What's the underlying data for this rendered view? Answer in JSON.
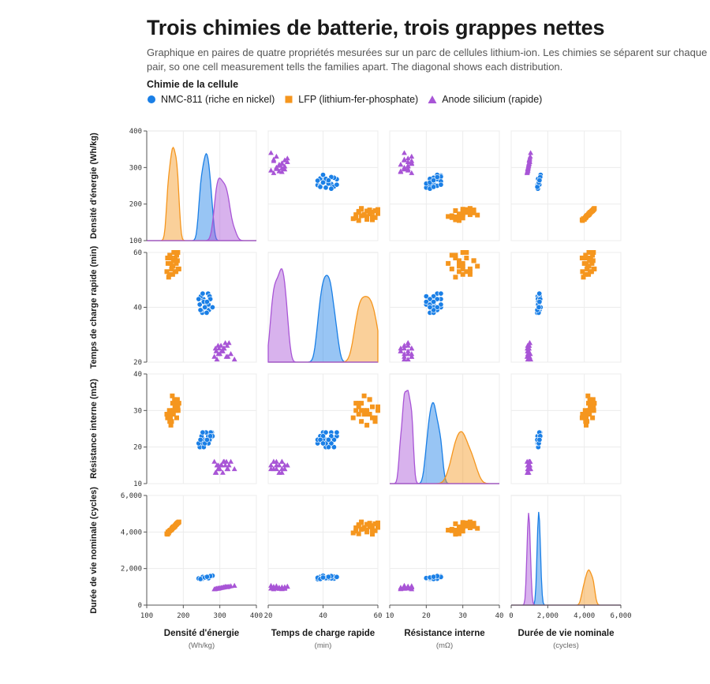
{
  "title": "Trois chimies de batterie, trois grappes nettes",
  "subtitle_line1": "Graphique en paires de quatre propriétés mesurées sur un parc de cellules lithium-ion. Les chimies se séparent sur chaque",
  "subtitle_line2": "pair, so one cell measurement tells the families apart. The diagonal shows each distribution.",
  "legend": {
    "title": "Chimie de la cellule",
    "items": [
      {
        "label": "NMC-811 (riche en nickel)",
        "color": "#1a7fe6",
        "marker": "circle"
      },
      {
        "label": "LFP (lithium-fer-phosphate)",
        "color": "#f5961e",
        "marker": "square"
      },
      {
        "label": "Anode silicium (rapide)",
        "color": "#a855d6",
        "marker": "triangle"
      }
    ]
  },
  "chart_data": {
    "type": "scatter",
    "subtype": "pair-plot (scatter matrix) with density diagonal",
    "grid": true,
    "variables": [
      {
        "name": "Densité d'énergie",
        "row_label": "Densité d'énergie (Wh/kg)",
        "unit": "(Wh/kg)",
        "range": [
          100,
          400
        ],
        "ticks": [
          100,
          200,
          300,
          400
        ],
        "tick_labels": [
          "100",
          "200",
          "300",
          "400"
        ]
      },
      {
        "name": "Temps de charge rapide",
        "row_label": "Temps de charge rapide (min)",
        "unit": "(min)",
        "range": [
          20,
          60
        ],
        "ticks": [
          20,
          40,
          60
        ],
        "tick_labels": [
          "20",
          "40",
          "60"
        ]
      },
      {
        "name": "Résistance interne",
        "row_label": "Résistance interne (mΩ)",
        "unit": "(mΩ)",
        "range": [
          10,
          40
        ],
        "ticks": [
          10,
          20,
          30,
          40
        ],
        "tick_labels": [
          "10",
          "20",
          "30",
          "40"
        ]
      },
      {
        "name": "Durée de vie nominale",
        "row_label": "Durée de vie nominale (cycles)",
        "unit": "(cycles)",
        "range": [
          0,
          6000
        ],
        "ticks": [
          0,
          2000,
          4000,
          6000
        ],
        "tick_labels": [
          "0",
          "2,000",
          "4,000",
          "6,000"
        ]
      }
    ],
    "series": [
      {
        "name": "NMC-811 (riche en nickel)",
        "color": "#1a7fe6",
        "marker": "circle",
        "points": [
          [
            263,
            41,
            22,
            1520
          ],
          [
            255,
            43,
            21,
            1480
          ],
          [
            270,
            39,
            23,
            1550
          ],
          [
            248,
            44,
            20,
            1450
          ],
          [
            278,
            40,
            24,
            1600
          ],
          [
            260,
            42,
            22,
            1500
          ],
          [
            252,
            38,
            21,
            1420
          ],
          [
            268,
            45,
            23,
            1530
          ],
          [
            245,
            41,
            20,
            1470
          ],
          [
            275,
            43,
            24,
            1580
          ],
          [
            258,
            40,
            22,
            1510
          ],
          [
            266,
            42,
            21,
            1490
          ],
          [
            250,
            39,
            23,
            1440
          ],
          [
            272,
            44,
            22,
            1560
          ],
          [
            262,
            41,
            24,
            1520
          ],
          [
            242,
            43,
            21,
            1460
          ],
          [
            280,
            40,
            23,
            1610
          ],
          [
            256,
            42,
            20,
            1480
          ],
          [
            264,
            38,
            22,
            1500
          ],
          [
            253,
            45,
            24,
            1540
          ],
          [
            269,
            41,
            21,
            1470
          ],
          [
            247,
            39,
            22,
            1430
          ],
          [
            274,
            43,
            23,
            1590
          ],
          [
            259,
            40,
            21,
            1510
          ],
          [
            265,
            42,
            22,
            1550
          ]
        ]
      },
      {
        "name": "LFP (lithium-fer-phosphate)",
        "color": "#f5961e",
        "marker": "square",
        "points": [
          [
            172,
            55,
            30,
            4250
          ],
          [
            165,
            58,
            28,
            4100
          ],
          [
            180,
            53,
            32,
            4400
          ],
          [
            158,
            56,
            29,
            4000
          ],
          [
            185,
            60,
            31,
            4500
          ],
          [
            168,
            54,
            27,
            4150
          ],
          [
            176,
            57,
            33,
            4300
          ],
          [
            162,
            52,
            30,
            4050
          ],
          [
            182,
            59,
            28,
            4450
          ],
          [
            170,
            55,
            34,
            4200
          ],
          [
            155,
            53,
            29,
            3900
          ],
          [
            178,
            58,
            31,
            4350
          ],
          [
            166,
            56,
            26,
            4100
          ],
          [
            188,
            54,
            32,
            4550
          ],
          [
            174,
            60,
            30,
            4250
          ],
          [
            160,
            51,
            28,
            3950
          ],
          [
            184,
            57,
            33,
            4480
          ],
          [
            169,
            55,
            29,
            4180
          ],
          [
            177,
            53,
            31,
            4320
          ],
          [
            163,
            59,
            27,
            4070
          ],
          [
            181,
            56,
            30,
            4420
          ],
          [
            171,
            52,
            32,
            4230
          ],
          [
            157,
            58,
            28,
            3880
          ],
          [
            186,
            54,
            30,
            4520
          ],
          [
            173,
            57,
            29,
            4280
          ]
        ]
      },
      {
        "name": "Anode silicium (rapide)",
        "color": "#a855d6",
        "marker": "triangle",
        "points": [
          [
            305,
            24,
            15,
            950
          ],
          [
            295,
            26,
            14,
            900
          ],
          [
            318,
            22,
            16,
            1000
          ],
          [
            288,
            25,
            13,
            880
          ],
          [
            325,
            27,
            15,
            1020
          ],
          [
            300,
            23,
            14,
            930
          ],
          [
            312,
            25,
            16,
            970
          ],
          [
            292,
            21,
            15,
            910
          ],
          [
            320,
            26,
            14,
            990
          ],
          [
            308,
            24,
            13,
            960
          ],
          [
            285,
            22,
            16,
            870
          ],
          [
            315,
            27,
            15,
            1010
          ],
          [
            298,
            25,
            14,
            920
          ],
          [
            330,
            23,
            16,
            1040
          ],
          [
            303,
            26,
            15,
            945
          ],
          [
            290,
            24,
            13,
            895
          ],
          [
            322,
            22,
            14,
            1000
          ],
          [
            310,
            25,
            16,
            975
          ],
          [
            296,
            23,
            15,
            915
          ],
          [
            340,
            21,
            14,
            1060
          ]
        ]
      }
    ]
  }
}
